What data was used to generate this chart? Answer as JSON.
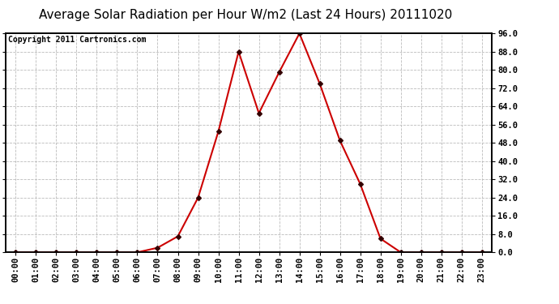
{
  "title": "Average Solar Radiation per Hour W/m2 (Last 24 Hours) 20111020",
  "copyright": "Copyright 2011 Cartronics.com",
  "hours": [
    "00:00",
    "01:00",
    "02:00",
    "03:00",
    "04:00",
    "05:00",
    "06:00",
    "07:00",
    "08:00",
    "09:00",
    "10:00",
    "11:00",
    "12:00",
    "13:00",
    "14:00",
    "15:00",
    "16:00",
    "17:00",
    "18:00",
    "19:00",
    "20:00",
    "21:00",
    "22:00",
    "23:00"
  ],
  "values": [
    0.0,
    0.0,
    0.0,
    0.0,
    0.0,
    0.0,
    0.0,
    2.0,
    7.0,
    24.0,
    53.0,
    88.0,
    61.0,
    79.0,
    96.0,
    74.0,
    49.0,
    30.0,
    6.0,
    0.0,
    0.0,
    0.0,
    0.0,
    0.0
  ],
  "line_color": "#cc0000",
  "marker_color": "#330000",
  "bg_color": "#ffffff",
  "plot_bg_color": "#ffffff",
  "grid_color": "#bbbbbb",
  "title_color": "#000000",
  "copyright_color": "#000000",
  "ylim": [
    0.0,
    96.0
  ],
  "yticks": [
    0.0,
    8.0,
    16.0,
    24.0,
    32.0,
    40.0,
    48.0,
    56.0,
    64.0,
    72.0,
    80.0,
    88.0,
    96.0
  ],
  "title_fontsize": 11,
  "copyright_fontsize": 7,
  "tick_fontsize": 7.5,
  "ylabel_fontsize": 7.5
}
